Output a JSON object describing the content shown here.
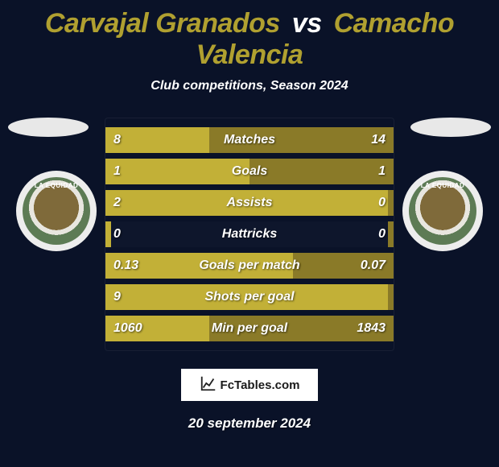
{
  "title": {
    "player1": "Carvajal Granados",
    "vs": "vs",
    "player2": "Camacho Valencia",
    "player1_color": "#b0a030",
    "player2_color": "#b0a030",
    "fontsize": 34
  },
  "subtitle": "Club competitions, Season 2024",
  "club_badge_text": "LA EQUIDAD",
  "colors": {
    "background": "#0a1228",
    "bar_left": "#c2b037",
    "bar_right": "#8a7a28",
    "text": "#ffffff"
  },
  "bar_track_width": 360,
  "stats": [
    {
      "label": "Matches",
      "left_val": "8",
      "right_val": "14",
      "left_pct": 36,
      "right_pct": 64
    },
    {
      "label": "Goals",
      "left_val": "1",
      "right_val": "1",
      "left_pct": 50,
      "right_pct": 50
    },
    {
      "label": "Assists",
      "left_val": "2",
      "right_val": "0",
      "left_pct": 98,
      "right_pct": 2
    },
    {
      "label": "Hattricks",
      "left_val": "0",
      "right_val": "0",
      "left_pct": 2,
      "right_pct": 2
    },
    {
      "label": "Goals per match",
      "left_val": "0.13",
      "right_val": "0.07",
      "left_pct": 65,
      "right_pct": 35
    },
    {
      "label": "Shots per goal",
      "left_val": "9",
      "right_val": "",
      "left_pct": 98,
      "right_pct": 2
    },
    {
      "label": "Min per goal",
      "left_val": "1060",
      "right_val": "1843",
      "left_pct": 36,
      "right_pct": 64
    }
  ],
  "branding": "FcTables.com",
  "date": "20 september 2024"
}
